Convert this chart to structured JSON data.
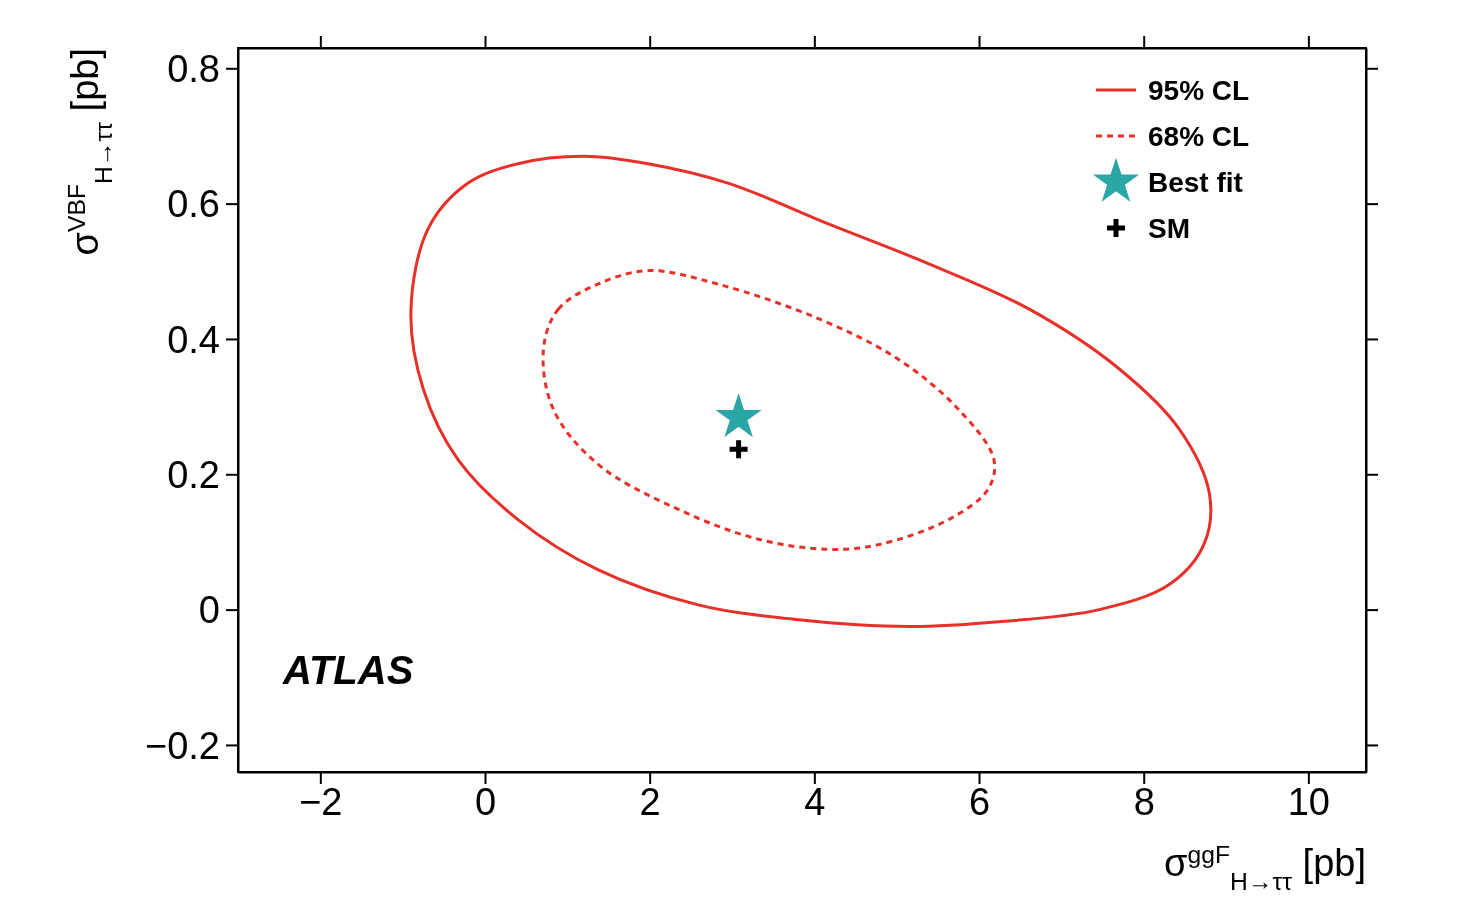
{
  "chart_data": {
    "type": "scatter",
    "xlabel": "σ$^{ggF}$$_{H→ττ}$ [pb]",
    "ylabel": "σ$^{VBF}$$_{H→ττ}$ [pb]",
    "xlim": [
      -3,
      10.7
    ],
    "ylim": [
      -0.24,
      0.83
    ],
    "xticks": [
      {
        "value": -2,
        "label": "−2"
      },
      0,
      2,
      4,
      6,
      8,
      10
    ],
    "yticks": [
      {
        "value": -0.2,
        "label": "−0.2"
      },
      0,
      0.2,
      0.4,
      0.6,
      0.8
    ],
    "grid": false,
    "legend": "top right",
    "annotations": [
      "ATLAS"
    ],
    "series": [
      {
        "name": "95% CL",
        "type": "line",
        "line_style": "solid",
        "color": "#e8302a"
      },
      {
        "name": "68% CL",
        "type": "line",
        "line_style": "dashed",
        "color": "#e8302a"
      },
      {
        "name": "Best fit",
        "marker": "star",
        "color": "#2aa6a6",
        "x": [
          3.08
        ],
        "values": [
          0.284
        ]
      },
      {
        "name": "SM",
        "marker": "cross",
        "color": "#000000",
        "x": [
          3.08
        ],
        "values": [
          0.237
        ]
      }
    ]
  }
}
